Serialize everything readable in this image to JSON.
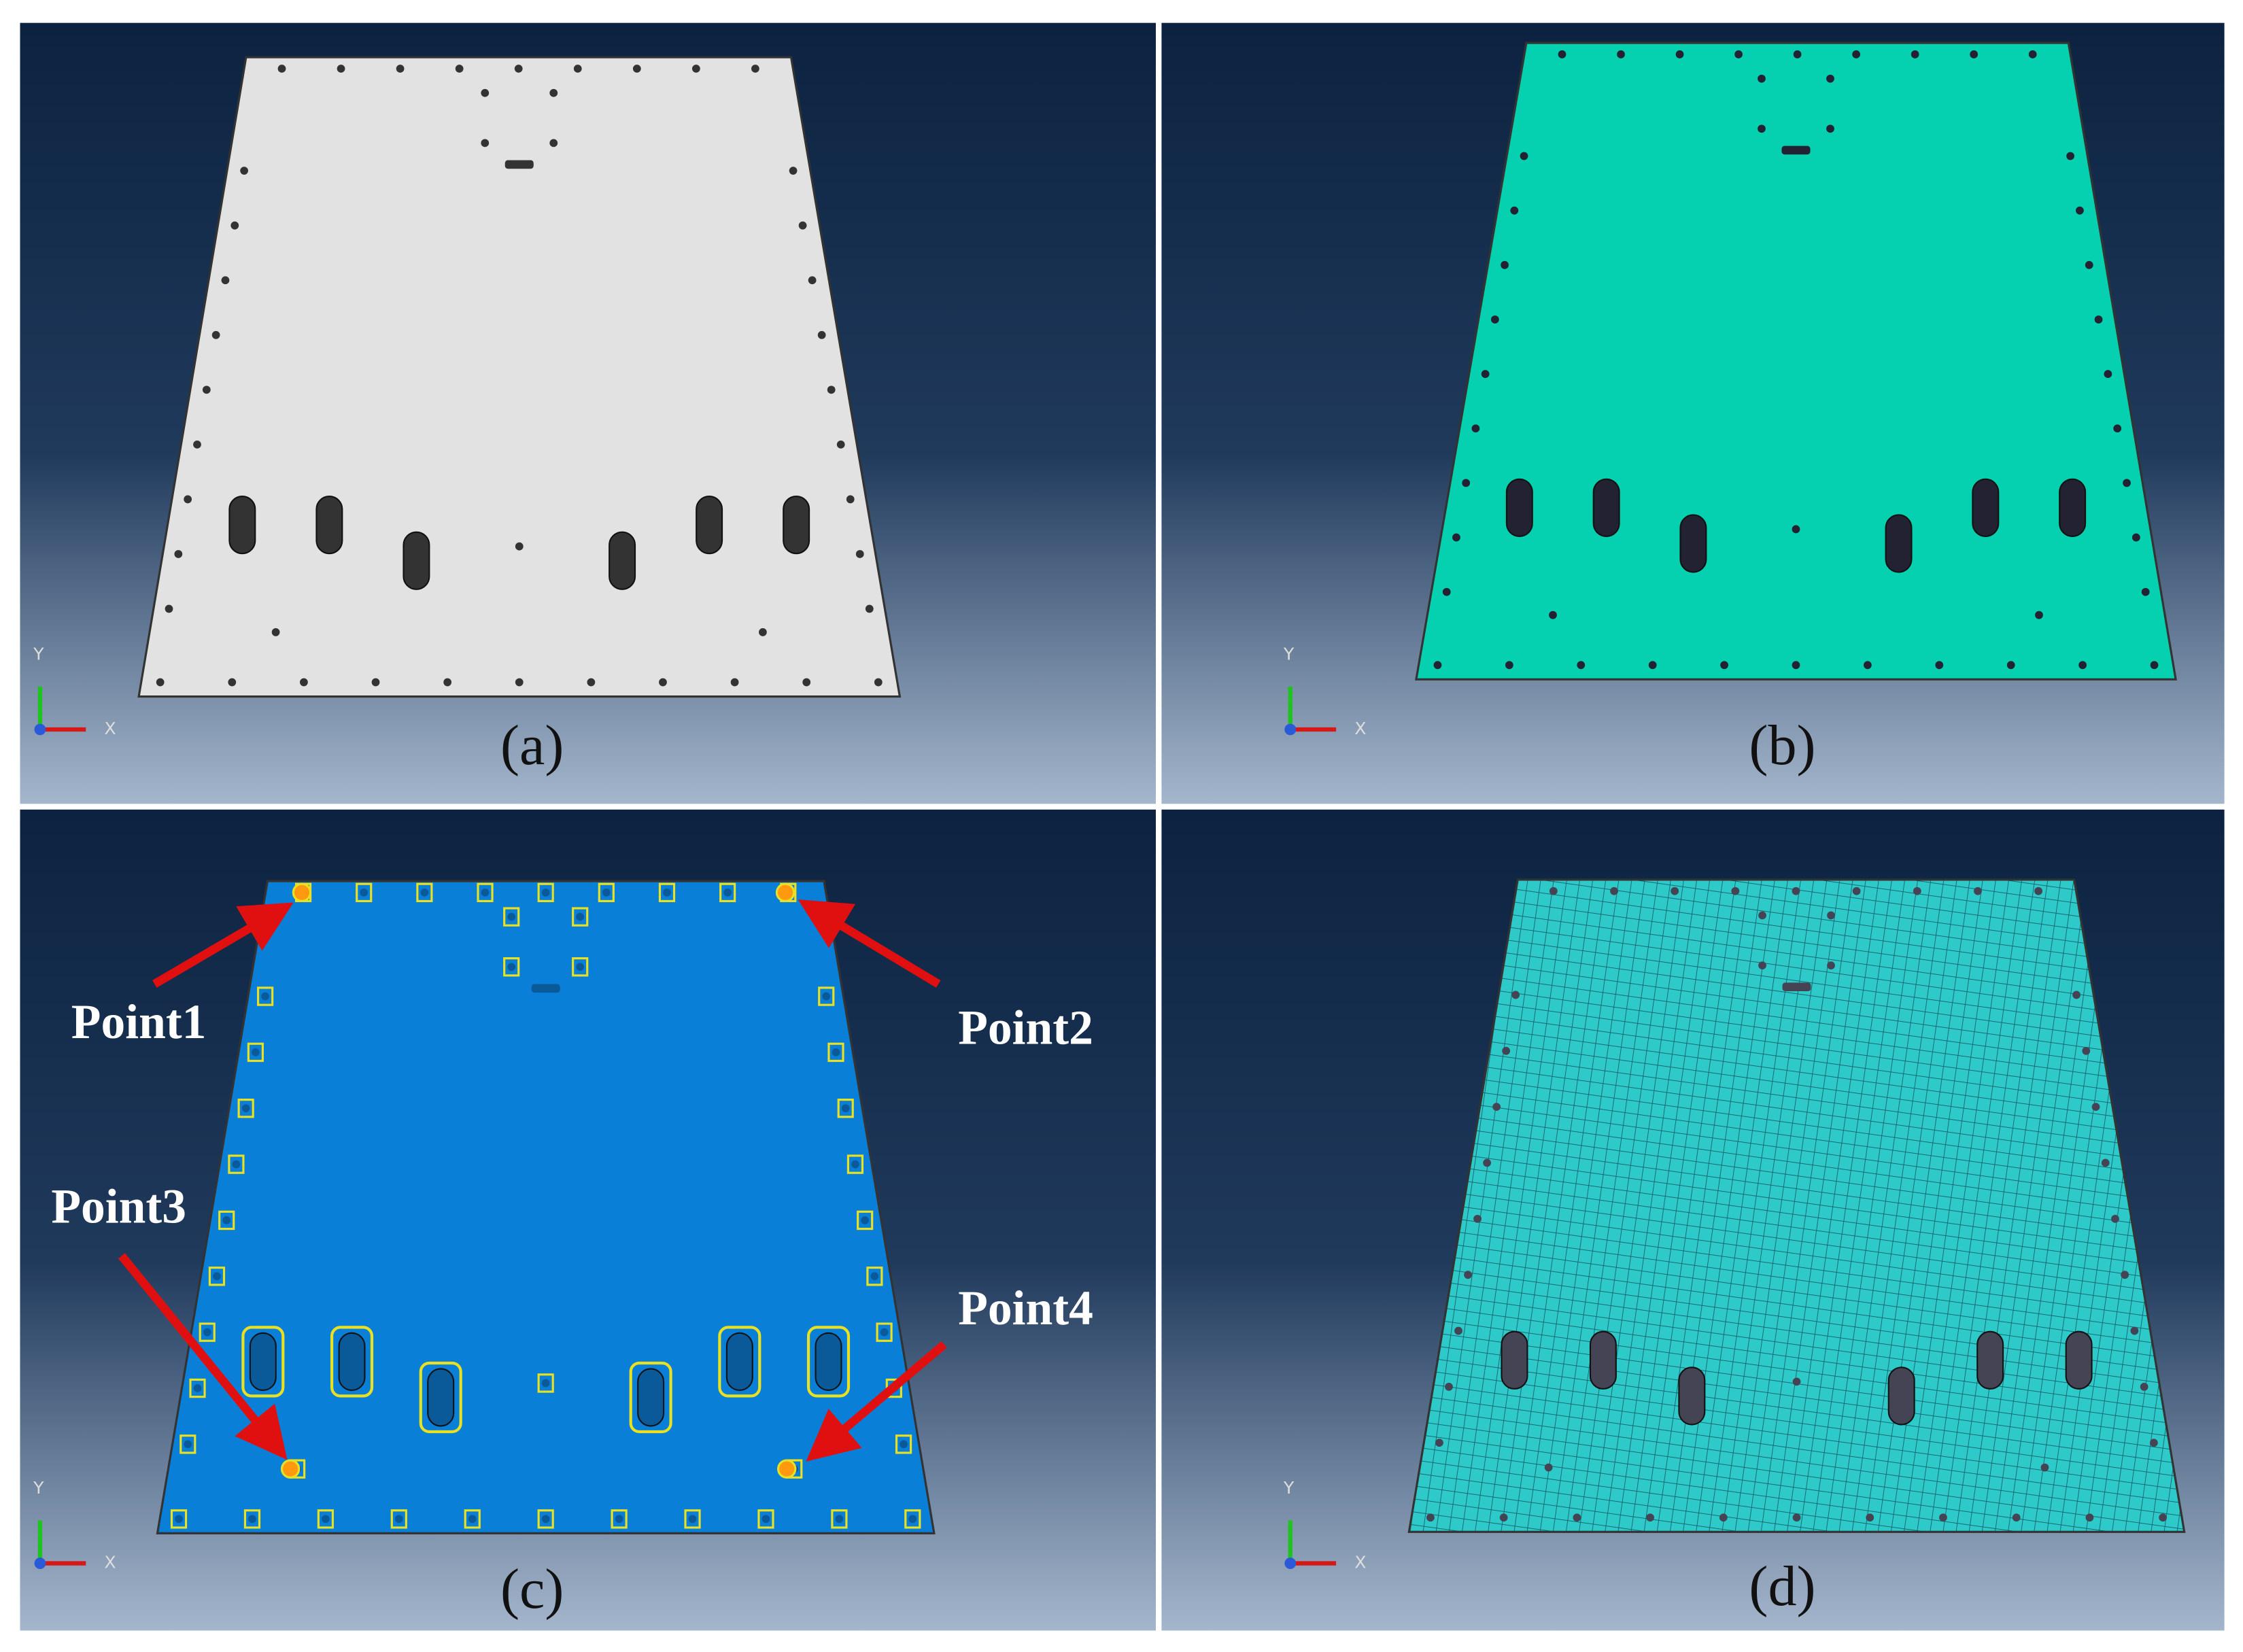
{
  "panels": [
    {
      "label": "(a)",
      "axis_y": "Y",
      "axis_x": "X"
    },
    {
      "label": "(b)",
      "axis_y": "Y",
      "axis_x": "X"
    },
    {
      "label": "(c)",
      "axis_y": "Y",
      "axis_x": "X"
    },
    {
      "label": "(d)",
      "axis_y": "Y",
      "axis_x": "X"
    }
  ],
  "callouts": [
    "Point1",
    "Point2",
    "Point3",
    "Point4"
  ]
}
